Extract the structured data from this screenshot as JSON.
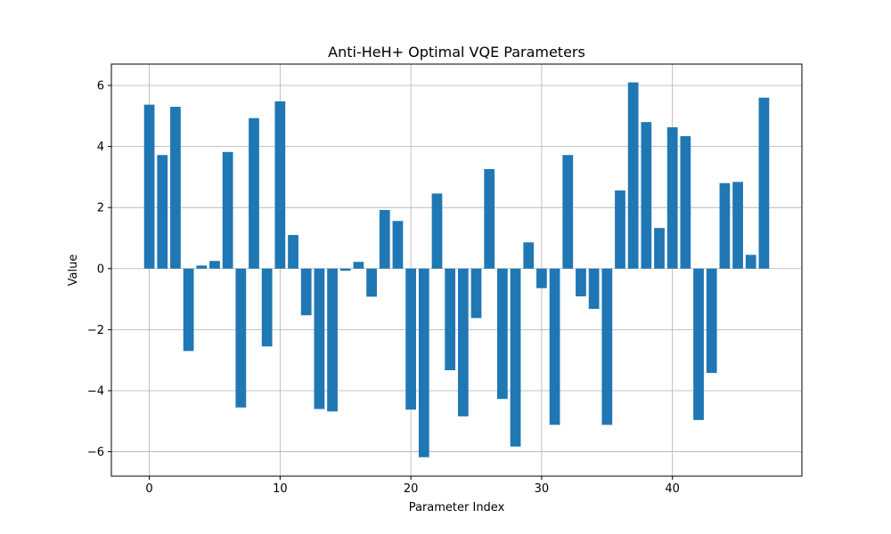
{
  "chart_data": {
    "type": "bar",
    "title": "Anti-HeH+ Optimal VQE Parameters",
    "xlabel": "Parameter Index",
    "ylabel": "Value",
    "x": [
      0,
      1,
      2,
      3,
      4,
      5,
      6,
      7,
      8,
      9,
      10,
      11,
      12,
      13,
      14,
      15,
      16,
      17,
      18,
      19,
      20,
      21,
      22,
      23,
      24,
      25,
      26,
      27,
      28,
      29,
      30,
      31,
      32,
      33,
      34,
      35,
      36,
      37,
      38,
      39,
      40,
      41,
      42,
      43,
      44,
      45,
      46,
      47
    ],
    "values": [
      5.37,
      3.72,
      5.3,
      -2.7,
      0.1,
      0.25,
      3.82,
      -4.55,
      4.93,
      -2.55,
      5.48,
      1.1,
      -1.53,
      -4.6,
      -4.68,
      -0.07,
      0.22,
      -0.92,
      1.92,
      1.56,
      -4.62,
      -6.18,
      2.46,
      -3.33,
      -4.84,
      -1.62,
      3.26,
      -4.27,
      -5.83,
      0.86,
      -0.64,
      -5.12,
      3.72,
      -0.91,
      -1.32,
      -5.12,
      2.56,
      6.1,
      4.8,
      1.33,
      4.63,
      4.34,
      -4.96,
      -3.42,
      2.8,
      2.84,
      0.45,
      5.6
    ],
    "xlim": [
      -2.9,
      49.9
    ],
    "ylim": [
      -6.8,
      6.7
    ],
    "xticks": [
      0,
      10,
      20,
      30,
      40
    ],
    "yticks": [
      -6,
      -4,
      -2,
      0,
      2,
      4,
      6
    ],
    "xtick_labels": [
      "0",
      "10",
      "20",
      "30",
      "40"
    ],
    "ytick_labels": [
      "−6",
      "−4",
      "−2",
      "0",
      "2",
      "4",
      "6"
    ],
    "grid": true,
    "bar_color": "#1f77b4",
    "grid_color": "#b0b0b0"
  }
}
